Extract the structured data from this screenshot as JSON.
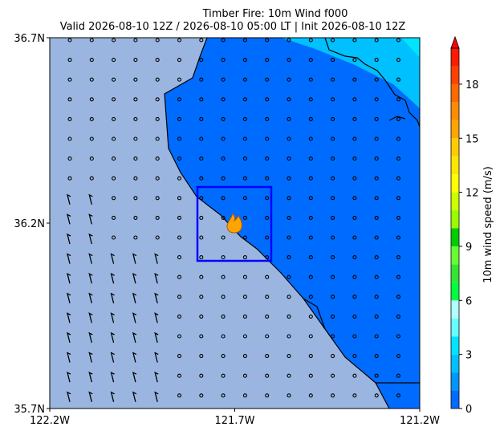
{
  "chart_data": {
    "type": "map",
    "title": "Timber Fire: 10m Wind f000",
    "subtitle": "Valid 2026-08-10 12Z / 2026-08-10 05:00 LT | Init 2026-08-10 12Z",
    "xlim": [
      -122.2,
      -121.2
    ],
    "xticks": [
      {
        "value": -122.2,
        "label": "122.2W"
      },
      {
        "value": -121.7,
        "label": "121.7W"
      },
      {
        "value": -121.2,
        "label": "121.2W"
      }
    ],
    "ylim": [
      35.7,
      36.7
    ],
    "yticks": [
      {
        "value": 35.7,
        "label": "35.7N"
      },
      {
        "value": 36.2,
        "label": "36.2N"
      },
      {
        "value": 36.7,
        "label": "36.7N"
      }
    ],
    "colorbar": {
      "label": "10m wind speed (m/s)",
      "clim": [
        0,
        20
      ],
      "ticks": [
        0,
        3,
        6,
        9,
        12,
        15,
        18
      ],
      "levels": [
        0,
        1,
        2,
        3,
        4,
        5,
        6,
        7,
        8,
        9,
        10,
        11,
        12,
        13,
        14,
        15,
        16,
        17,
        18,
        19,
        20
      ],
      "colors": [
        "#006cff",
        "#0096ff",
        "#00c0ff",
        "#00e4ff",
        "#66ffff",
        "#b0ffff",
        "#00ff40",
        "#33e633",
        "#66ff33",
        "#00cc00",
        "#99ff00",
        "#ccff00",
        "#ffff00",
        "#ffe600",
        "#ffcc00",
        "#ffa500",
        "#ff8c00",
        "#ff6a00",
        "#ff4000",
        "#ff1a00"
      ],
      "extend_color": "#ff0000"
    }
  }
}
